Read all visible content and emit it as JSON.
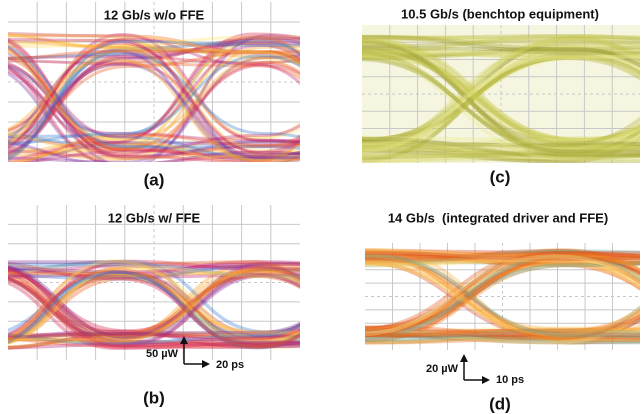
{
  "panels": [
    {
      "title": "12 Gb/s w/o FFE",
      "label": "(a)"
    },
    {
      "title": "12 Gb/s w/ FFE",
      "label": "(b)",
      "scale_power": "50 µW",
      "scale_time": "20 ps"
    },
    {
      "title": "10.5 Gb/s (benchtop equipment)",
      "label": "(c)"
    },
    {
      "title": "14 Gb/s  (integrated driver and FFE)",
      "label": "(d)",
      "scale_power": "20 µW",
      "scale_time": "10 ps"
    }
  ]
}
